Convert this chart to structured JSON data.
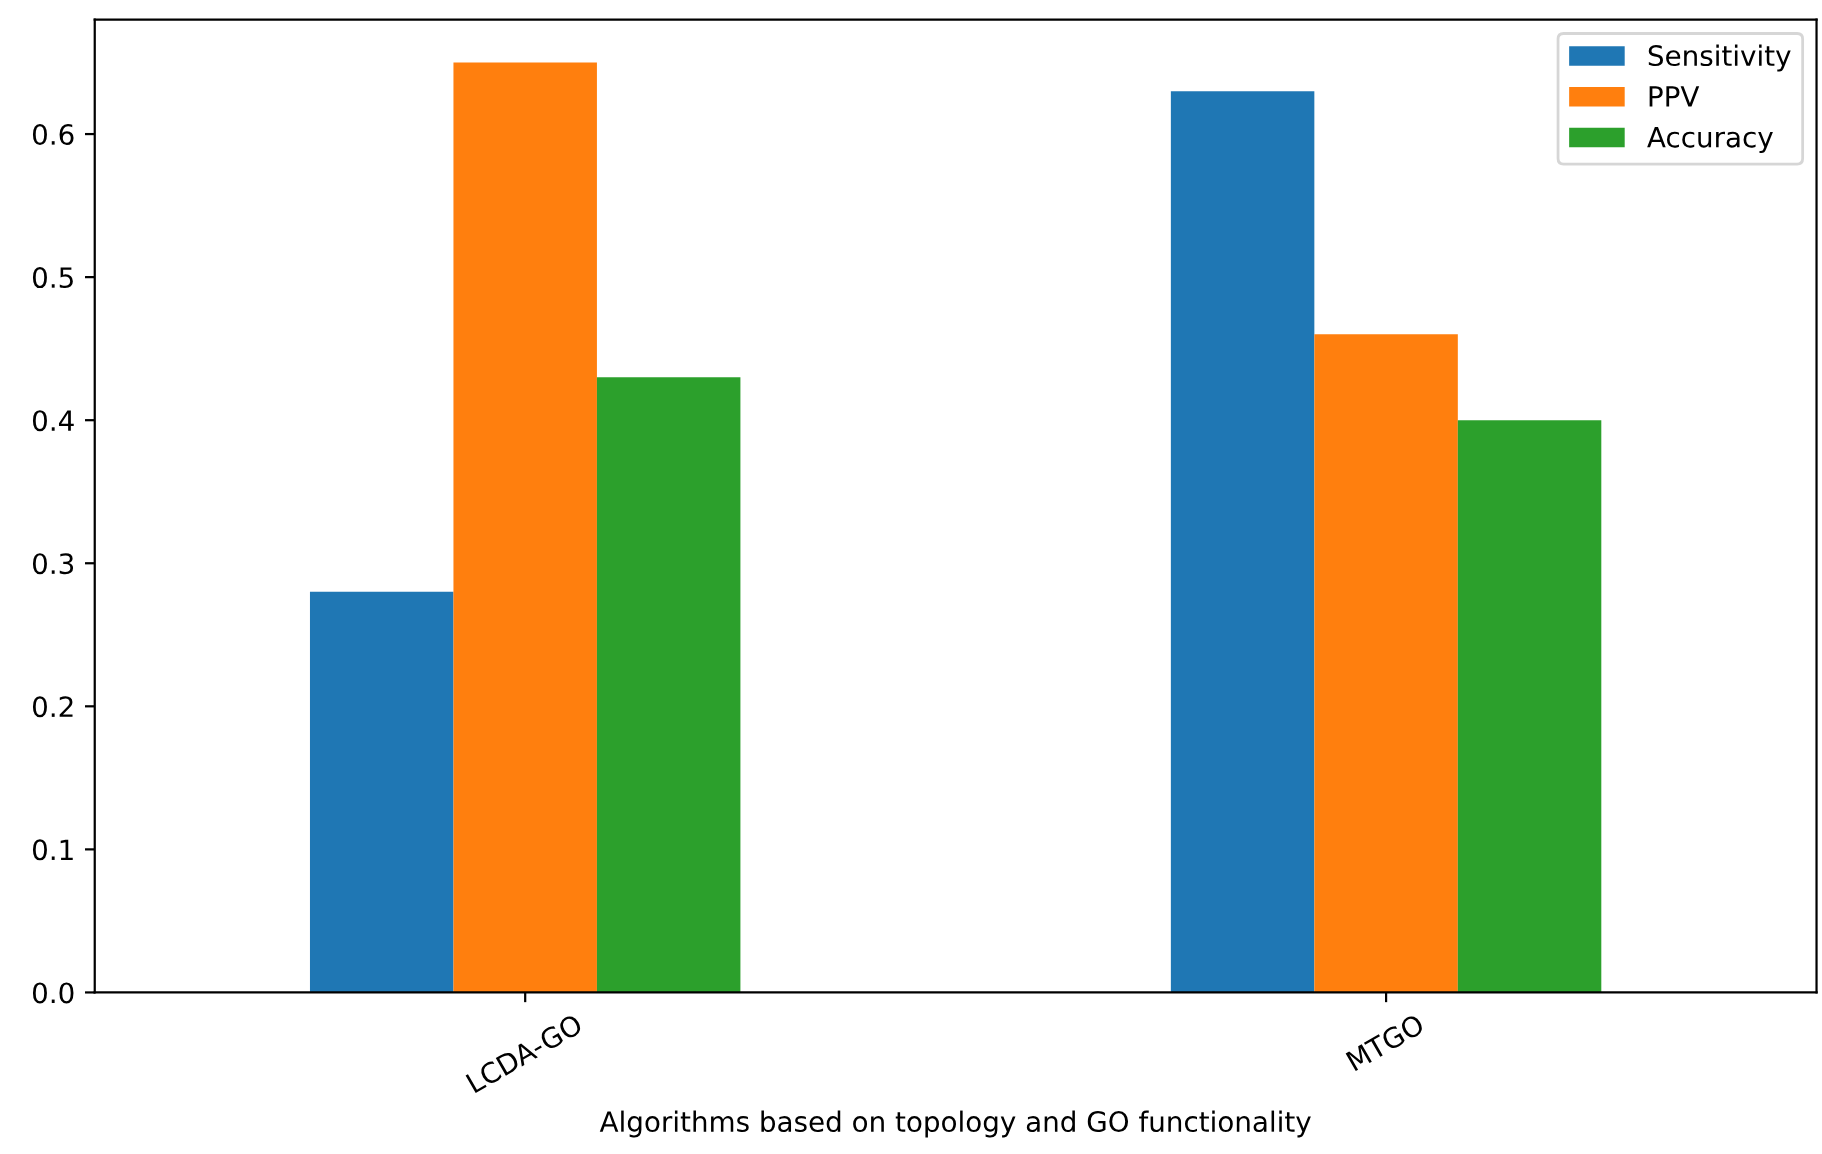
{
  "chart_data": {
    "type": "bar",
    "xlabel": "Algorithms based on topology and GO functionality",
    "categories": [
      "LCDA-GO",
      "MTGO"
    ],
    "series": [
      {
        "name": "Sensitivity",
        "color": "#1f77b4",
        "values": [
          0.28,
          0.63
        ]
      },
      {
        "name": "PPV",
        "color": "#ff7f0e",
        "values": [
          0.65,
          0.46
        ]
      },
      {
        "name": "Accuracy",
        "color": "#2ca02c",
        "values": [
          0.43,
          0.4
        ]
      }
    ],
    "ylim": [
      0,
      0.68
    ],
    "yticks": [
      {
        "value": 0,
        "label": "0.0"
      },
      0.1,
      0.2,
      0.3,
      0.4,
      0.5,
      0.6
    ],
    "legend": "top right",
    "grid": false
  }
}
